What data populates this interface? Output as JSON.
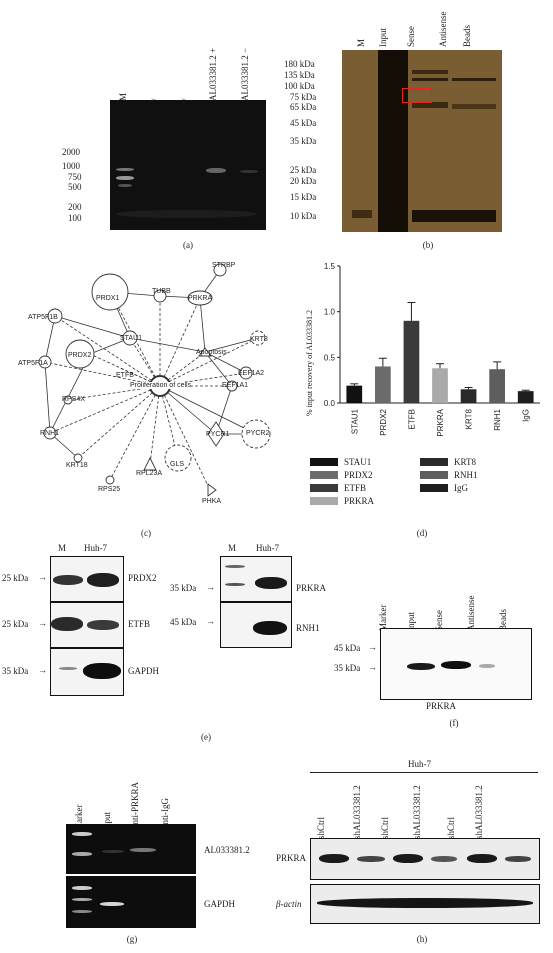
{
  "panel_a": {
    "caption": "(a)",
    "lanes": [
      "M",
      "/",
      "/",
      "AL033381.2 +",
      "AL033381.2 −"
    ],
    "markers": [
      "2000",
      "1000",
      "750",
      "500",
      "200",
      "100"
    ]
  },
  "panel_b": {
    "caption": "(b)",
    "lanes": [
      "M",
      "Input",
      "Sense",
      "Antisense",
      "Beads"
    ],
    "markers": [
      "180 kDa",
      "135 kDa",
      "100 kDa",
      "75 kDa",
      "65 kDa",
      "45 kDa",
      "35 kDa",
      "25 kDa",
      "20 kDa",
      "15 kDa",
      "10 kDa"
    ]
  },
  "panel_c": {
    "caption": "(c)",
    "nodes": [
      "STRBP",
      "PRDX1",
      "TUBB",
      "PRKRA",
      "ATP5F1B",
      "STAU1",
      "Apoptosis",
      "KRT8",
      "PRDX2",
      "EEF1A2",
      "ATP5F1A",
      "ETFB",
      "Proliferation of cells",
      "EEF1A1",
      "RPS4X",
      "PYCR1",
      "PYCR2",
      "RNH1",
      "GLS",
      "KRT18",
      "RPL23A",
      "RPS25",
      "PHKA"
    ]
  },
  "panel_d": {
    "caption": "(d)",
    "legend": [
      "STAU1",
      "PRDX2",
      "ETFB",
      "PRKRA",
      "KRT8",
      "RNH1",
      "IgG"
    ]
  },
  "chart_data": {
    "type": "bar",
    "categories": [
      "STAU1",
      "PRDX2",
      "ETFB",
      "PRKRA",
      "KRT8",
      "RNH1",
      "IgG"
    ],
    "values": [
      0.19,
      0.4,
      0.9,
      0.38,
      0.15,
      0.37,
      0.13
    ],
    "errors": [
      0.02,
      0.09,
      0.2,
      0.05,
      0.02,
      0.08,
      0.01
    ],
    "colors": [
      "#111111",
      "#6b6b6b",
      "#3a3a3a",
      "#a9a9a9",
      "#2a2a2a",
      "#5e5e5e",
      "#1e1e1e"
    ],
    "ylabel": "% input recovery of AL033381.2",
    "yticks": [
      "0.0",
      "0.5",
      "1.0",
      "1.5"
    ],
    "ylim": [
      0,
      1.5
    ]
  },
  "panel_e": {
    "caption": "(e)",
    "lanes": [
      "M",
      "Huh-7"
    ],
    "markers": [
      "25 kDa",
      "25 kDa",
      "35 kDa"
    ],
    "proteins": [
      "PRDX2",
      "ETFB",
      "GAPDH"
    ]
  },
  "panel_e2": {
    "lanes": [
      "M",
      "Huh-7"
    ],
    "markers": [
      "35 kDa",
      "45 kDa"
    ],
    "proteins": [
      "PRKRA",
      "RNH1"
    ]
  },
  "panel_f": {
    "caption": "(f)",
    "lanes": [
      "Marker",
      "Input",
      "Sense",
      "Antisense",
      "Beads"
    ],
    "markers": [
      "45 kDa",
      "35 kDa"
    ],
    "protein": "PRKRA"
  },
  "panel_g": {
    "caption": "(g)",
    "lanes": [
      "Marker",
      "Input",
      "Anti-PRKRA",
      "Anti-IgG"
    ],
    "targets": [
      "AL033381.2",
      "GAPDH"
    ]
  },
  "panel_h": {
    "caption": "(h)",
    "cell_line": "Huh-7",
    "lanes": [
      "shCtrl",
      "shAL033381.2",
      "shCtrl",
      "shAL033381.2",
      "shCtrl",
      "shAL033381.2"
    ],
    "proteins": [
      "PRKRA",
      "β-actin"
    ]
  }
}
